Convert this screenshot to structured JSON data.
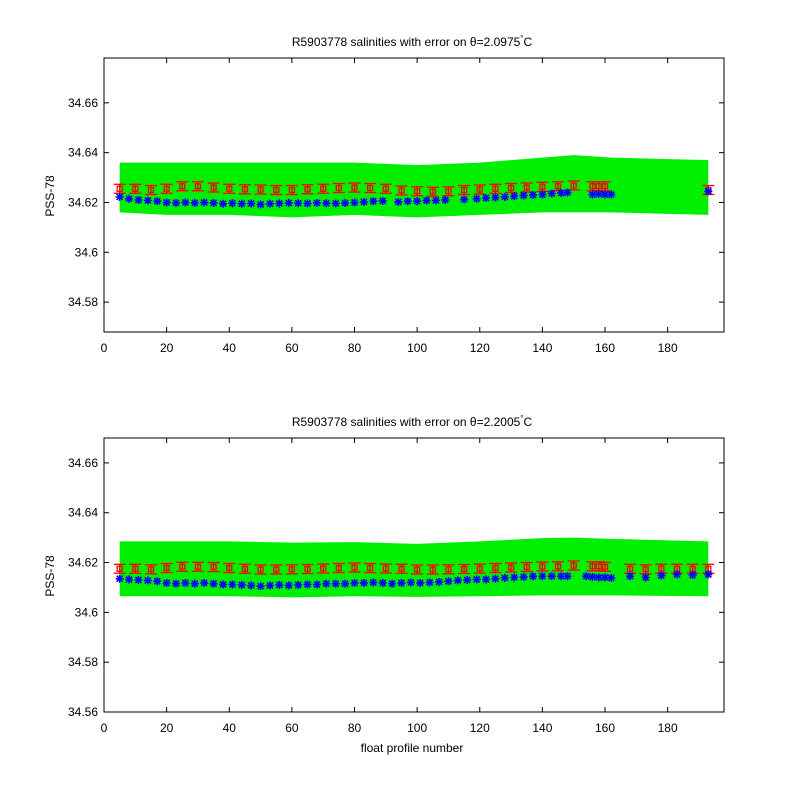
{
  "chart_data": [
    {
      "type": "scatter",
      "title": "R5903778 salinities with error on θ=2.0975°C",
      "title_main": "R5903778 salinities with error on θ=2.0975",
      "title_deg": "°",
      "title_unit": "C",
      "xlabel": "",
      "ylabel": "PSS-78",
      "xlim": [
        0,
        198
      ],
      "ylim": [
        34.568,
        34.678
      ],
      "xticks": [
        0,
        20,
        40,
        60,
        80,
        100,
        120,
        140,
        160,
        180
      ],
      "xtick_labels": [
        "0",
        "20",
        "40",
        "60",
        "80",
        "100",
        "120",
        "140",
        "160",
        "180"
      ],
      "yticks": [
        34.58,
        34.6,
        34.62,
        34.64,
        34.66
      ],
      "ytick_labels": [
        "34.58",
        "34.6",
        "34.62",
        "34.64",
        "34.66"
      ],
      "grid": false,
      "band": {
        "color": "#00ee00",
        "x": [
          5,
          20,
          40,
          60,
          80,
          100,
          120,
          140,
          150,
          162,
          193
        ],
        "upper": [
          34.636,
          34.636,
          34.636,
          34.636,
          34.636,
          34.635,
          34.636,
          34.638,
          34.639,
          34.638,
          34.637
        ],
        "lower": [
          34.616,
          34.615,
          34.615,
          34.614,
          34.615,
          34.614,
          34.615,
          34.616,
          34.616,
          34.616,
          34.615
        ]
      },
      "calibrated": {
        "color": "#ff0000",
        "error": 0.0018,
        "x": [
          5,
          10,
          15,
          20,
          25,
          30,
          35,
          40,
          45,
          50,
          55,
          60,
          65,
          70,
          75,
          80,
          85,
          90,
          95,
          100,
          105,
          110,
          115,
          120,
          125,
          130,
          135,
          140,
          145,
          150,
          156,
          158,
          160,
          193
        ],
        "y": [
          34.6255,
          34.6255,
          34.625,
          34.6255,
          34.6265,
          34.6265,
          34.626,
          34.6255,
          34.6253,
          34.6252,
          34.625,
          34.625,
          34.6253,
          34.6255,
          34.6258,
          34.626,
          34.6258,
          34.6255,
          34.6248,
          34.6245,
          34.6243,
          34.6245,
          34.625,
          34.6252,
          34.6255,
          34.6258,
          34.626,
          34.6263,
          34.6265,
          34.6268,
          34.6265,
          34.6265,
          34.6265,
          34.625
        ]
      },
      "uncalibrated": {
        "color": "#0000ff",
        "x": [
          5,
          8,
          11,
          14,
          17,
          20,
          23,
          26,
          29,
          32,
          35,
          38,
          41,
          44,
          47,
          50,
          53,
          56,
          59,
          62,
          65,
          68,
          71,
          74,
          77,
          80,
          83,
          86,
          89,
          94,
          97,
          100,
          103,
          106,
          109,
          115,
          119,
          122,
          125,
          128,
          131,
          134,
          137,
          140,
          143,
          146,
          148,
          156,
          158,
          160,
          162,
          193
        ],
        "y": [
          34.6222,
          34.6215,
          34.621,
          34.6208,
          34.6205,
          34.62,
          34.6198,
          34.62,
          34.6198,
          34.62,
          34.6198,
          34.6195,
          34.6197,
          34.6195,
          34.6196,
          34.6192,
          34.6195,
          34.6196,
          34.6198,
          34.6197,
          34.6196,
          34.6198,
          34.6197,
          34.6196,
          34.6198,
          34.62,
          34.6202,
          34.6205,
          34.6206,
          34.6202,
          34.6205,
          34.6205,
          34.6208,
          34.6208,
          34.621,
          34.6212,
          34.6215,
          34.6218,
          34.622,
          34.6222,
          34.6225,
          34.6228,
          34.623,
          34.6232,
          34.6236,
          34.6238,
          34.624,
          34.6232,
          34.6234,
          34.6232,
          34.6232,
          34.6245
        ]
      }
    },
    {
      "type": "scatter",
      "title": "R5903778 salinities with error on θ=2.2005°C",
      "title_main": "R5903778 salinities with error on θ=2.2005",
      "title_deg": "°",
      "title_unit": "C",
      "xlabel": "float profile number",
      "ylabel": "PSS-78",
      "xlim": [
        0,
        198
      ],
      "ylim": [
        34.56,
        34.67
      ],
      "xticks": [
        0,
        20,
        40,
        60,
        80,
        100,
        120,
        140,
        160,
        180
      ],
      "xtick_labels": [
        "0",
        "20",
        "40",
        "60",
        "80",
        "100",
        "120",
        "140",
        "160",
        "180"
      ],
      "yticks": [
        34.56,
        34.58,
        34.6,
        34.62,
        34.64,
        34.66
      ],
      "ytick_labels": [
        "34.56",
        "34.58",
        "34.6",
        "34.62",
        "34.64",
        "34.66"
      ],
      "grid": false,
      "band": {
        "color": "#00ee00",
        "x": [
          5,
          20,
          40,
          60,
          80,
          100,
          120,
          140,
          150,
          162,
          193
        ],
        "upper": [
          34.6285,
          34.6285,
          34.6285,
          34.628,
          34.6282,
          34.6275,
          34.6285,
          34.6298,
          34.63,
          34.6295,
          34.6285
        ],
        "lower": [
          34.6065,
          34.6065,
          34.6065,
          34.606,
          34.6065,
          34.6062,
          34.6065,
          34.6068,
          34.6068,
          34.6068,
          34.6065
        ]
      },
      "calibrated": {
        "color": "#ff0000",
        "error": 0.0018,
        "x": [
          5,
          10,
          15,
          20,
          25,
          30,
          35,
          40,
          45,
          50,
          55,
          60,
          65,
          70,
          75,
          80,
          85,
          90,
          95,
          100,
          105,
          110,
          115,
          120,
          125,
          130,
          135,
          140,
          145,
          150,
          156,
          158,
          160,
          168,
          173,
          178,
          183,
          188,
          193
        ],
        "y": [
          34.6175,
          34.6175,
          34.6173,
          34.6178,
          34.6183,
          34.6183,
          34.6182,
          34.6178,
          34.6175,
          34.6172,
          34.6172,
          34.6173,
          34.6174,
          34.6176,
          34.6178,
          34.618,
          34.6178,
          34.6176,
          34.6175,
          34.6172,
          34.6172,
          34.6173,
          34.6174,
          34.6176,
          34.6178,
          34.618,
          34.6182,
          34.6184,
          34.6185,
          34.6188,
          34.6185,
          34.6185,
          34.6183,
          34.6175,
          34.6173,
          34.6175,
          34.6175,
          34.6175,
          34.6175
        ]
      },
      "uncalibrated": {
        "color": "#0000ff",
        "x": [
          5,
          8,
          11,
          14,
          17,
          20,
          23,
          26,
          29,
          32,
          35,
          38,
          41,
          44,
          47,
          50,
          53,
          56,
          59,
          62,
          65,
          68,
          71,
          74,
          77,
          80,
          83,
          86,
          89,
          92,
          95,
          98,
          101,
          104,
          107,
          110,
          113,
          116,
          119,
          122,
          125,
          128,
          131,
          134,
          137,
          140,
          143,
          146,
          148,
          154,
          156,
          158,
          160,
          162,
          168,
          173,
          178,
          183,
          188,
          193
        ],
        "y": [
          34.6135,
          34.6132,
          34.613,
          34.6128,
          34.6125,
          34.6118,
          34.6115,
          34.6118,
          34.6115,
          34.6118,
          34.6115,
          34.6112,
          34.6112,
          34.611,
          34.6108,
          34.6105,
          34.6108,
          34.611,
          34.6108,
          34.611,
          34.6112,
          34.6112,
          34.6115,
          34.6115,
          34.6115,
          34.6118,
          34.6118,
          34.612,
          34.6118,
          34.6115,
          34.6118,
          34.612,
          34.6118,
          34.612,
          34.6122,
          34.6125,
          34.6128,
          34.613,
          34.6132,
          34.6132,
          34.6135,
          34.6138,
          34.614,
          34.6142,
          34.6145,
          34.6145,
          34.6145,
          34.6145,
          34.6145,
          34.6145,
          34.6142,
          34.614,
          34.614,
          34.6138,
          34.6145,
          34.614,
          34.6148,
          34.6152,
          34.615,
          34.6152
        ]
      }
    }
  ]
}
